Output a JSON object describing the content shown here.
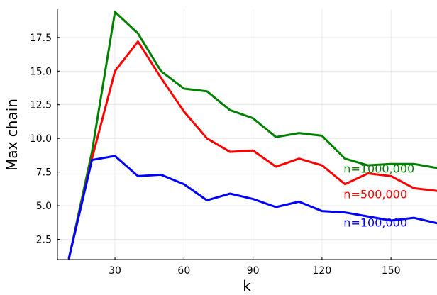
{
  "chart_data": {
    "type": "line",
    "title": "",
    "xlabel": "k",
    "ylabel": "Max chain",
    "xlim": [
      5,
      170
    ],
    "ylim": [
      1.0,
      19.6
    ],
    "xticks": [
      30,
      60,
      90,
      120,
      150
    ],
    "yticks": [
      2.5,
      5.0,
      7.5,
      10.0,
      12.5,
      15.0,
      17.5
    ],
    "xtick_labels": [
      "30",
      "60",
      "90",
      "120",
      "150"
    ],
    "ytick_labels": [
      "2.5",
      "5.0",
      "7.5",
      "10.0",
      "12.5",
      "15.0",
      "17.5"
    ],
    "grid": true,
    "legend": "inline labels at right end of series",
    "x": [
      10,
      20,
      30,
      40,
      50,
      60,
      70,
      80,
      90,
      100,
      110,
      120,
      130,
      140,
      150,
      160,
      170
    ],
    "series": [
      {
        "name": "n=1000,000",
        "color": "#008000",
        "values": [
          1.1,
          9.0,
          19.4,
          17.8,
          15.0,
          13.7,
          13.5,
          12.1,
          11.5,
          10.1,
          10.4,
          10.2,
          8.5,
          8.0,
          8.1,
          8.1,
          7.8
        ]
      },
      {
        "name": "n=500,000",
        "color": "#ff0000",
        "values": [
          1.1,
          8.5,
          15.0,
          17.2,
          14.5,
          12.0,
          10.0,
          9.0,
          9.1,
          7.9,
          8.5,
          8.0,
          6.6,
          7.4,
          7.2,
          6.3,
          6.1
        ]
      },
      {
        "name": "n=100,000",
        "color": "#0000ff",
        "values": [
          1.1,
          8.4,
          8.7,
          7.2,
          7.3,
          6.6,
          5.4,
          5.9,
          5.5,
          4.9,
          5.3,
          4.6,
          4.5,
          4.2,
          3.9,
          4.1,
          3.7
        ]
      }
    ]
  }
}
